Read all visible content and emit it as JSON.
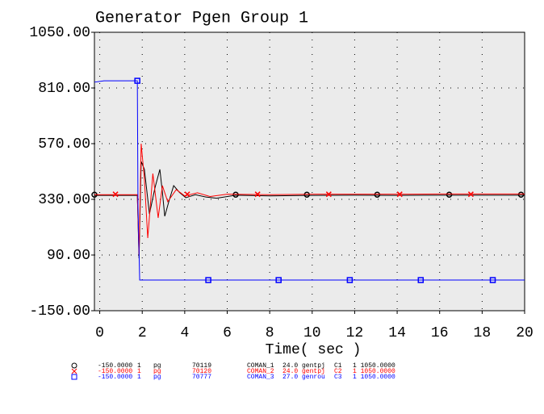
{
  "chart_data": {
    "type": "line",
    "title": "Generator Pgen Group 1",
    "xlabel": "Time( sec )",
    "xlim": [
      -0.25,
      20
    ],
    "ylim": [
      -150,
      1050
    ],
    "xticks": [
      0,
      2,
      4,
      6,
      8,
      10,
      12,
      14,
      16,
      18,
      20
    ],
    "yticks": [
      {
        "value": -150,
        "label": "-150.00"
      },
      {
        "value": 90,
        "label": "90.00"
      },
      {
        "value": 330,
        "label": "330.00"
      },
      {
        "value": 570,
        "label": "570.00"
      },
      {
        "value": 810,
        "label": "810.00"
      },
      {
        "value": 1050,
        "label": "1050.00"
      }
    ],
    "grid": true,
    "background": "#ebebeb",
    "series": [
      {
        "color": "#000000",
        "marker": "circle",
        "min": "-150.0000",
        "id": "1",
        "quantity": "pg",
        "bus": "70119",
        "bus_name": "COMAN_1",
        "kv": "24.0",
        "model": "gentpj",
        "machine": "C1",
        "scale": "1 1050.0000",
        "x": [
          -0.25,
          1.7,
          1.77,
          1.85,
          1.95,
          2.1,
          2.34,
          2.6,
          2.83,
          2.95,
          3.06,
          3.25,
          3.48,
          3.75,
          4.05,
          4.5,
          5.0,
          5.5,
          6.4,
          8,
          10,
          12,
          14,
          16,
          18,
          20
        ],
        "values": [
          347,
          347,
          347,
          76,
          493,
          460,
          267,
          380,
          459,
          360,
          257,
          320,
          389,
          360,
          337,
          350,
          340,
          335,
          348,
          345,
          347,
          348,
          347,
          348,
          348,
          348
        ],
        "markers": {
          "x": [
            -0.25,
            6.4,
            9.75,
            13.06,
            16.45,
            19.83
          ],
          "values": [
            350,
            350,
            350,
            350,
            350,
            350
          ]
        }
      },
      {
        "color": "#ff0000",
        "marker": "x",
        "min": "-150.0000",
        "id": "1",
        "quantity": "pg",
        "bus": "70120",
        "bus_name": "COMAN_2",
        "kv": "24.0",
        "model": "gentpj",
        "machine": "C2",
        "scale": "1 1050.0000",
        "x": [
          -0.25,
          1.7,
          1.77,
          1.85,
          1.95,
          2.1,
          2.26,
          2.5,
          2.75,
          2.95,
          3.2,
          3.6,
          4.0,
          4.6,
          5.2,
          6.0,
          8,
          10,
          12,
          14,
          16,
          18,
          20
        ],
        "values": [
          350,
          350,
          350,
          90,
          570,
          420,
          163,
          441,
          250,
          389,
          320,
          372,
          345,
          358,
          342,
          352,
          350,
          352,
          352,
          352,
          353,
          353,
          353
        ],
        "markers": {
          "x": [
            0.74,
            4.12,
            7.43,
            10.78,
            14.12,
            17.47
          ],
          "values": [
            352,
            352,
            352,
            352,
            352,
            352
          ]
        }
      },
      {
        "color": "#0000ff",
        "marker": "square",
        "min": "-150.0000",
        "id": "1",
        "quantity": "pg",
        "bus": "70777",
        "bus_name": "COMAN_3",
        "kv": "27.0",
        "model": "genrou",
        "machine": "C3",
        "scale": "1 1050.0000",
        "x": [
          -0.25,
          0.2,
          1.77,
          1.8,
          1.88,
          20
        ],
        "values": [
          835,
          841,
          841,
          300,
          -18,
          -18
        ],
        "markers": {
          "x": [
            1.77,
            5.11,
            8.42,
            11.77,
            15.11,
            18.5
          ],
          "values": [
            841,
            -18,
            -18,
            -18,
            -18,
            -18
          ]
        }
      }
    ]
  }
}
